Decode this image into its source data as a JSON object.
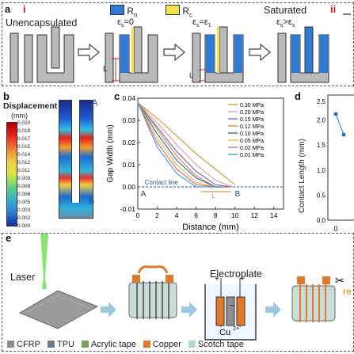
{
  "panel_a": {
    "label": "a",
    "roman_i": "i",
    "roman_ii": "ii",
    "legend": [
      {
        "text": "R",
        "sub": "n",
        "color": "#2e7bd6"
      },
      {
        "text": "R",
        "sub": "c",
        "color": "#f2e34a"
      }
    ],
    "unencapsulated": "Unencapsulated",
    "saturated": "Saturated",
    "strain_0": {
      "eps": "ε",
      "sub": "s",
      "rel": "=0"
    },
    "strain_1": {
      "eps": "ε",
      "sub": "s",
      "rel": "=ε",
      "sub2": "1"
    },
    "strain_2": {
      "eps": "ε",
      "sub": "s",
      "rel": ">ε",
      "sub2": "s"
    },
    "lc_label": "L",
    "lc_sub": "c"
  },
  "panel_b": {
    "label": "b",
    "title": "Displacement",
    "unit": "(mm)",
    "scale_ticks": [
      "0.020",
      "0.019",
      "0.017",
      "0.015",
      "0.014",
      "0.012",
      "0.011",
      "0.009",
      "0.008",
      "0.006",
      "0.005",
      "0.003",
      "0.002",
      "0.000"
    ],
    "marker_a": "A",
    "marker_b": "B"
  },
  "panel_c": {
    "label": "c",
    "contact_line": "Contact line",
    "marker_a": "A",
    "marker_b": "B",
    "lc_label": "L",
    "lc_sub": "c"
  },
  "panel_d": {
    "label": "d",
    "ylabel": "Contact Length (mm)",
    "yticks": [
      "2.5",
      "2.0",
      "1.5",
      "1.0",
      "0.5",
      "0.0"
    ],
    "xtick": "0"
  },
  "panel_e": {
    "label": "e",
    "laser": "Laser",
    "electroplate": "Electroplate",
    "cu_label": "Cu",
    "cu_sup": "2+",
    "plus": "+",
    "minus": "−",
    "re": "re",
    "legend": [
      {
        "label": "CFRP",
        "color": "#8e8e8e"
      },
      {
        "label": "TPU",
        "color": "#6b7b8c"
      },
      {
        "label": "Acrylic tape",
        "color": "#7aa05a"
      },
      {
        "label": "Copper",
        "color": "#e07a2a"
      },
      {
        "label": "Scotch tape",
        "color": "#b8d8c8"
      }
    ]
  },
  "chart_data": {
    "type": "line",
    "title": "",
    "xlabel": "Distance (mm)",
    "ylabel": "Gap Width (mm)",
    "xlim": [
      0,
      15
    ],
    "ylim": [
      -0.01,
      0.04
    ],
    "xticks": [
      "0",
      "2",
      "4",
      "6",
      "8",
      "10",
      "12",
      "14"
    ],
    "yticks": [
      "0.04",
      "0.03",
      "0.02",
      "0.01",
      "0.00",
      "-0.01"
    ],
    "series": [
      {
        "name": "0.30 MPa",
        "color": "#c8a23c",
        "x": [
          0,
          2,
          4,
          6,
          8,
          10
        ],
        "y": [
          0.038,
          0.031,
          0.023,
          0.015,
          0.008,
          0.001
        ]
      },
      {
        "name": "0.20 MPa",
        "color": "#e0a0b0",
        "x": [
          0,
          2,
          4,
          6,
          8,
          9.8
        ],
        "y": [
          0.038,
          0.029,
          0.019,
          0.01,
          0.003,
          0.0
        ]
      },
      {
        "name": "0.15 MPa",
        "color": "#7a6cc0",
        "x": [
          0,
          2,
          4,
          6,
          8,
          9.6
        ],
        "y": [
          0.038,
          0.027,
          0.016,
          0.007,
          0.001,
          0.0
        ]
      },
      {
        "name": "0.12 MPa",
        "color": "#e08a3a",
        "x": [
          0,
          2,
          4,
          6,
          8,
          9.4
        ],
        "y": [
          0.038,
          0.026,
          0.014,
          0.005,
          0.0,
          0.0
        ]
      },
      {
        "name": "0.10 MPa",
        "color": "#2f6fb8",
        "x": [
          0,
          2,
          4,
          6,
          8,
          9.2
        ],
        "y": [
          0.038,
          0.024,
          0.012,
          0.004,
          0.0,
          0.0
        ]
      },
      {
        "name": "0.05 MPa",
        "color": "#e0c040",
        "x": [
          0,
          2,
          4,
          6,
          8,
          9.0
        ],
        "y": [
          0.038,
          0.022,
          0.01,
          0.002,
          0.0,
          0.0
        ]
      },
      {
        "name": "0.02 MPa",
        "color": "#d06a90",
        "x": [
          0,
          2,
          4,
          6,
          8,
          8.8
        ],
        "y": [
          0.038,
          0.02,
          0.008,
          0.001,
          0.0,
          0.0
        ]
      },
      {
        "name": "0.01 MPa",
        "color": "#4aa0c8",
        "x": [
          0,
          2,
          4,
          6,
          8,
          8.6
        ],
        "y": [
          0.038,
          0.018,
          0.006,
          0.0,
          0.0,
          0.0
        ]
      }
    ]
  }
}
